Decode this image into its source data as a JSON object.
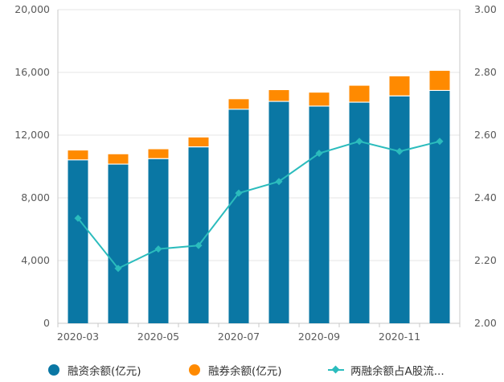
{
  "chart_data": {
    "type": "bar",
    "categories": [
      "2020-03",
      "2020-04",
      "2020-05",
      "2020-06",
      "2020-07",
      "2020-08",
      "2020-09",
      "2020-10",
      "2020-11",
      "2020-12"
    ],
    "x_tick_labels": [
      "2020-03",
      "2020-05",
      "2020-07",
      "2020-09",
      "2020-11"
    ],
    "stacked": true,
    "series": [
      {
        "name": "融资余额(亿元)",
        "axis": "left",
        "kind": "bar",
        "color": "#0a77a4",
        "values": [
          10420,
          10150,
          10500,
          11250,
          13650,
          14150,
          13850,
          14100,
          14500,
          14850
        ]
      },
      {
        "name": "融券余额(亿元)",
        "axis": "left",
        "kind": "bar",
        "color": "#ff8a00",
        "values": [
          600,
          630,
          600,
          600,
          640,
          720,
          860,
          1050,
          1250,
          1250
        ]
      },
      {
        "name": "两融余额占A股流...",
        "axis": "right",
        "kind": "line",
        "color": "#2bbcbd",
        "values": [
          2.335,
          2.175,
          2.237,
          2.248,
          2.415,
          2.452,
          2.542,
          2.58,
          2.548,
          2.58
        ]
      }
    ],
    "y_left": {
      "ylim": [
        0,
        20000
      ],
      "ticks": [
        "0",
        "4,000",
        "8,000",
        "12,000",
        "16,000",
        "20,000"
      ],
      "tick_values": [
        0,
        4000,
        8000,
        12000,
        16000,
        20000
      ]
    },
    "y_right": {
      "ylim": [
        2.0,
        3.0
      ],
      "ticks": [
        "2.00",
        "2.20",
        "2.40",
        "2.60",
        "2.80",
        "3.00"
      ],
      "tick_values": [
        2.0,
        2.2,
        2.4,
        2.6,
        2.8,
        3.0
      ]
    },
    "grid": true,
    "legend_position": "bottom"
  }
}
